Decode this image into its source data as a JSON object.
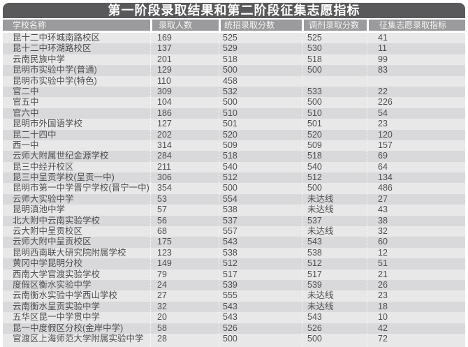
{
  "title": "第一阶段录取结果和第二阶段征集志愿指标",
  "table": {
    "columns": [
      "学校名称",
      "录取人数",
      "统招录取分数",
      "调剂录取分数",
      "征集志愿录取指标"
    ],
    "rows": [
      [
        "昆十二中环城南路校区",
        "169",
        "525",
        "525",
        "41"
      ],
      [
        "昆十二中环湖路校区",
        "137",
        "529",
        "530",
        "11"
      ],
      [
        "云南民族中学",
        "201",
        "518",
        "518",
        "99"
      ],
      [
        "昆明市实验中学(普通)",
        "129",
        "500",
        "500",
        "83"
      ],
      [
        "昆明市实验中学(特色)",
        "110",
        "458",
        "",
        ""
      ],
      [
        "官二中",
        "309",
        "532",
        "533",
        "22"
      ],
      [
        "官五中",
        "104",
        "500",
        "500",
        "226"
      ],
      [
        "官六中",
        "186",
        "510",
        "510",
        "54"
      ],
      [
        "昆明市外国语学校",
        "127",
        "501",
        "501",
        "23"
      ],
      [
        "昆二十四中",
        "202",
        "520",
        "520",
        "120"
      ],
      [
        "西一中",
        "314",
        "509",
        "509",
        "157"
      ],
      [
        "云师大附属世纪金源学校",
        "284",
        "518",
        "518",
        "69"
      ],
      [
        "昆三中经开校区",
        "211",
        "540",
        "540",
        "64"
      ],
      [
        "昆三中呈贡学校(呈贡一中)",
        "306",
        "512",
        "512",
        "134"
      ],
      [
        "昆明市第一中学晋宁学校(晋宁一中)",
        "354",
        "500",
        "500",
        "486"
      ],
      [
        "云师大实验中学",
        "53",
        "554",
        "未达线",
        "27"
      ],
      [
        "昆明滇池中学",
        "57",
        "538",
        "未达线",
        "43"
      ],
      [
        "北大附中云南实验学校",
        "56",
        "537",
        "537",
        "38"
      ],
      [
        "云大附中呈贡校区",
        "68",
        "557",
        "未达线",
        "32"
      ],
      [
        "云师大附中呈贡校区",
        "175",
        "543",
        "543",
        "60"
      ],
      [
        "昆明西南联大研究院附属学校",
        "123",
        "538",
        "538",
        "12"
      ],
      [
        "黄冈中学昆明分校",
        "149",
        "512",
        "512",
        "51"
      ],
      [
        "西南大学官渡实验学校",
        "79",
        "517",
        "517",
        "21"
      ],
      [
        "度假区衡水实验中学",
        "24",
        "539",
        "539",
        "26"
      ],
      [
        "云南衡水实验中学西山学校",
        "27",
        "555",
        "未达线",
        "23"
      ],
      [
        "云南衡水呈贡实验中学",
        "32",
        "543",
        "未达线",
        "18"
      ],
      [
        "五华区昆一中学贯中学",
        "20",
        "543",
        "543",
        "10"
      ],
      [
        "昆一中度假区分校(金岸中学)",
        "58",
        "526",
        "526",
        "42"
      ],
      [
        "官渡区上海师范大学附属实验中学",
        "28",
        "500",
        "500",
        "72"
      ]
    ]
  },
  "colors": {
    "title_bar_bg": "#59595b",
    "header_bg": "#9b9b9d",
    "row_light": "#e8e8e9",
    "row_dark": "#d9d9db",
    "data_text": "#4e4e50"
  }
}
